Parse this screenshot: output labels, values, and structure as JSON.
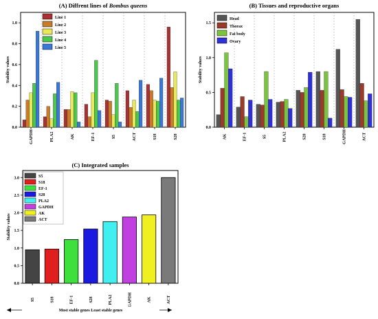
{
  "chart_data": [
    {
      "type": "bar",
      "title_prefix": "(A) Diffrent lines of ",
      "title_italic": "Bombus queens",
      "ylabel": "Stability values",
      "ylim": [
        0,
        1.1
      ],
      "yticks": [
        "0.0",
        "0.2",
        "0.4",
        "0.6",
        "0.8",
        "1.0"
      ],
      "categories": [
        "GAPDH",
        "PLA2",
        "AK",
        "EF-1",
        "S5",
        "ACT",
        "S18",
        "S28"
      ],
      "legend_position": "top-right",
      "series": [
        {
          "name": "Line 1",
          "color": "#a83232",
          "values": [
            0.07,
            0.1,
            0.17,
            0.22,
            0.26,
            0.35,
            0.41,
            0.96
          ]
        },
        {
          "name": "Line 2",
          "color": "#c87b2a",
          "values": [
            0.26,
            0.2,
            0.17,
            0.1,
            0.25,
            0.19,
            0.35,
            0.38
          ]
        },
        {
          "name": "Line 3",
          "color": "#e8e858",
          "values": [
            0.33,
            0.08,
            0.34,
            0.33,
            0.12,
            0.26,
            0.26,
            0.53
          ]
        },
        {
          "name": "Line 4",
          "color": "#4cc64c",
          "values": [
            0.42,
            0.32,
            0.33,
            0.64,
            0.42,
            0.15,
            0.25,
            0.26
          ]
        },
        {
          "name": "Line 5",
          "color": "#3a78d8",
          "values": [
            0.92,
            0.43,
            0.05,
            0.16,
            0.05,
            0.45,
            0.47,
            0.28
          ]
        }
      ]
    },
    {
      "type": "bar",
      "title": "(B) Tissues and reproductive organs",
      "ylabel": "Stability values",
      "ylim": [
        0,
        1.65
      ],
      "yticks": [
        "0.0",
        "0.5",
        "1.0",
        "1.5"
      ],
      "categories": [
        "AK",
        "EF-1",
        "S5",
        "PLA2",
        "S28",
        "S18",
        "GAPDH",
        "ACT"
      ],
      "legend_position": "top-left",
      "series": [
        {
          "name": "Head",
          "color": "#555555",
          "values": [
            0.18,
            0.29,
            0.33,
            0.36,
            0.53,
            0.8,
            1.12,
            1.55
          ]
        },
        {
          "name": "Thorax",
          "color": "#9a3a2a",
          "values": [
            0.56,
            0.44,
            0.32,
            0.37,
            0.5,
            0.53,
            0.54,
            0.63
          ]
        },
        {
          "name": "Fat body",
          "color": "#7cc440",
          "values": [
            1.07,
            0.15,
            0.8,
            0.4,
            0.57,
            0.8,
            0.44,
            0.38
          ]
        },
        {
          "name": "Ovary",
          "color": "#2f30d8",
          "values": [
            0.84,
            0.39,
            0.4,
            0.27,
            0.79,
            0.13,
            0.43,
            0.48
          ]
        }
      ]
    },
    {
      "type": "bar",
      "title": "(C) Integrated samples",
      "ylabel": "Stability values",
      "ylim": [
        0,
        3.2
      ],
      "yticks": [
        "0.0",
        "0.5",
        "1.0",
        "1.5",
        "2.0",
        "2.5",
        "3.0"
      ],
      "categories": [
        "S5",
        "S18",
        "EF-1",
        "S28",
        "PLA2",
        "GAPDH",
        "AK",
        "ACT"
      ],
      "values": [
        0.95,
        0.97,
        1.24,
        1.54,
        1.75,
        1.88,
        1.94,
        3.0
      ],
      "colors": [
        "#444444",
        "#e01e1e",
        "#3ee03e",
        "#1a1ae0",
        "#40f0f0",
        "#c040e0",
        "#f0f020",
        "#7a7a7a"
      ],
      "legend_position": "top-left",
      "legend": [
        {
          "name": "S5",
          "color": "#444444"
        },
        {
          "name": "S18",
          "color": "#e01e1e"
        },
        {
          "name": "EF-1",
          "color": "#3ee03e"
        },
        {
          "name": "S28",
          "color": "#1a1ae0"
        },
        {
          "name": "PLA2",
          "color": "#40f0f0"
        },
        {
          "name": "GAPDH",
          "color": "#c040e0"
        },
        {
          "name": "AK",
          "color": "#f0f020"
        },
        {
          "name": "ACT",
          "color": "#7a7a7a"
        }
      ],
      "annotation": "Most stable genes    Least stable genes"
    }
  ]
}
